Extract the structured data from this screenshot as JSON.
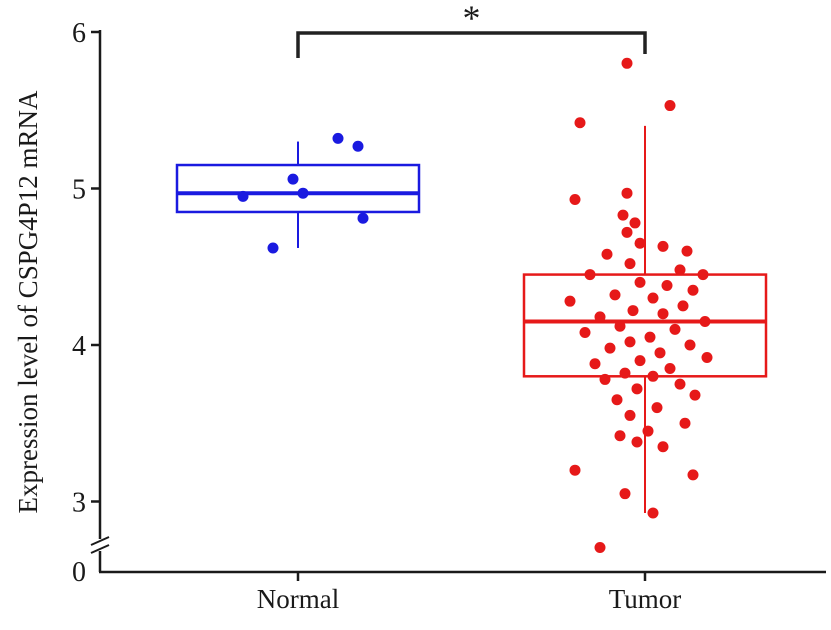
{
  "chart_data": {
    "type": "box",
    "title": "",
    "ylabel": "Expression level of CSPG4P12 mRNA",
    "xlabel": "",
    "categories": [
      "Normal",
      "Tumor"
    ],
    "yticks": [
      0,
      3,
      4,
      5,
      6
    ],
    "ylim_display": [
      2.5,
      6
    ],
    "axis_break": {
      "between": [
        0,
        3
      ]
    },
    "significance": {
      "label": "*",
      "groups": [
        "Normal",
        "Tumor"
      ]
    },
    "axis_color": "#1a1a1a",
    "groups": [
      {
        "name": "Normal",
        "color": "#1a1ae0",
        "box": {
          "q1": 4.85,
          "median": 4.97,
          "q3": 5.15,
          "whisker_low": 4.62,
          "whisker_high": 5.3
        },
        "points": [
          [
            4.95,
            -55
          ],
          [
            4.62,
            -25
          ],
          [
            5.06,
            -5
          ],
          [
            4.97,
            5
          ],
          [
            5.32,
            40
          ],
          [
            5.27,
            60
          ],
          [
            4.81,
            65
          ]
        ]
      },
      {
        "name": "Tumor",
        "color": "#e61919",
        "box": {
          "q1": 3.8,
          "median": 4.15,
          "q3": 4.45,
          "whisker_low": 2.9,
          "whisker_high": 5.4
        },
        "points": [
          [
            5.8,
            -18
          ],
          [
            5.53,
            25
          ],
          [
            5.42,
            -65
          ],
          [
            4.97,
            -18
          ],
          [
            4.93,
            -70
          ],
          [
            4.83,
            -22
          ],
          [
            4.78,
            -10
          ],
          [
            4.72,
            -18
          ],
          [
            4.65,
            -5
          ],
          [
            4.63,
            18
          ],
          [
            4.6,
            42
          ],
          [
            4.58,
            -38
          ],
          [
            4.52,
            -15
          ],
          [
            4.48,
            35
          ],
          [
            4.45,
            58
          ],
          [
            4.45,
            -55
          ],
          [
            4.4,
            -5
          ],
          [
            4.38,
            22
          ],
          [
            4.35,
            48
          ],
          [
            4.32,
            -30
          ],
          [
            4.3,
            8
          ],
          [
            4.28,
            -75
          ],
          [
            4.25,
            38
          ],
          [
            4.22,
            -12
          ],
          [
            4.2,
            18
          ],
          [
            4.18,
            -45
          ],
          [
            4.15,
            60
          ],
          [
            4.12,
            -25
          ],
          [
            4.1,
            30
          ],
          [
            4.08,
            -60
          ],
          [
            4.05,
            5
          ],
          [
            4.02,
            -15
          ],
          [
            4.0,
            45
          ],
          [
            3.98,
            -35
          ],
          [
            3.95,
            15
          ],
          [
            3.92,
            62
          ],
          [
            3.9,
            -5
          ],
          [
            3.88,
            -50
          ],
          [
            3.85,
            25
          ],
          [
            3.82,
            -20
          ],
          [
            3.8,
            8
          ],
          [
            3.78,
            -40
          ],
          [
            3.75,
            35
          ],
          [
            3.72,
            -8
          ],
          [
            3.68,
            50
          ],
          [
            3.65,
            -28
          ],
          [
            3.6,
            12
          ],
          [
            3.55,
            -15
          ],
          [
            3.5,
            40
          ],
          [
            3.45,
            3
          ],
          [
            3.42,
            -25
          ],
          [
            3.38,
            -8
          ],
          [
            3.35,
            18
          ],
          [
            3.2,
            -70
          ],
          [
            3.17,
            48
          ],
          [
            3.05,
            -20
          ],
          [
            2.9,
            8
          ],
          [
            2.6,
            -45
          ]
        ]
      }
    ]
  }
}
